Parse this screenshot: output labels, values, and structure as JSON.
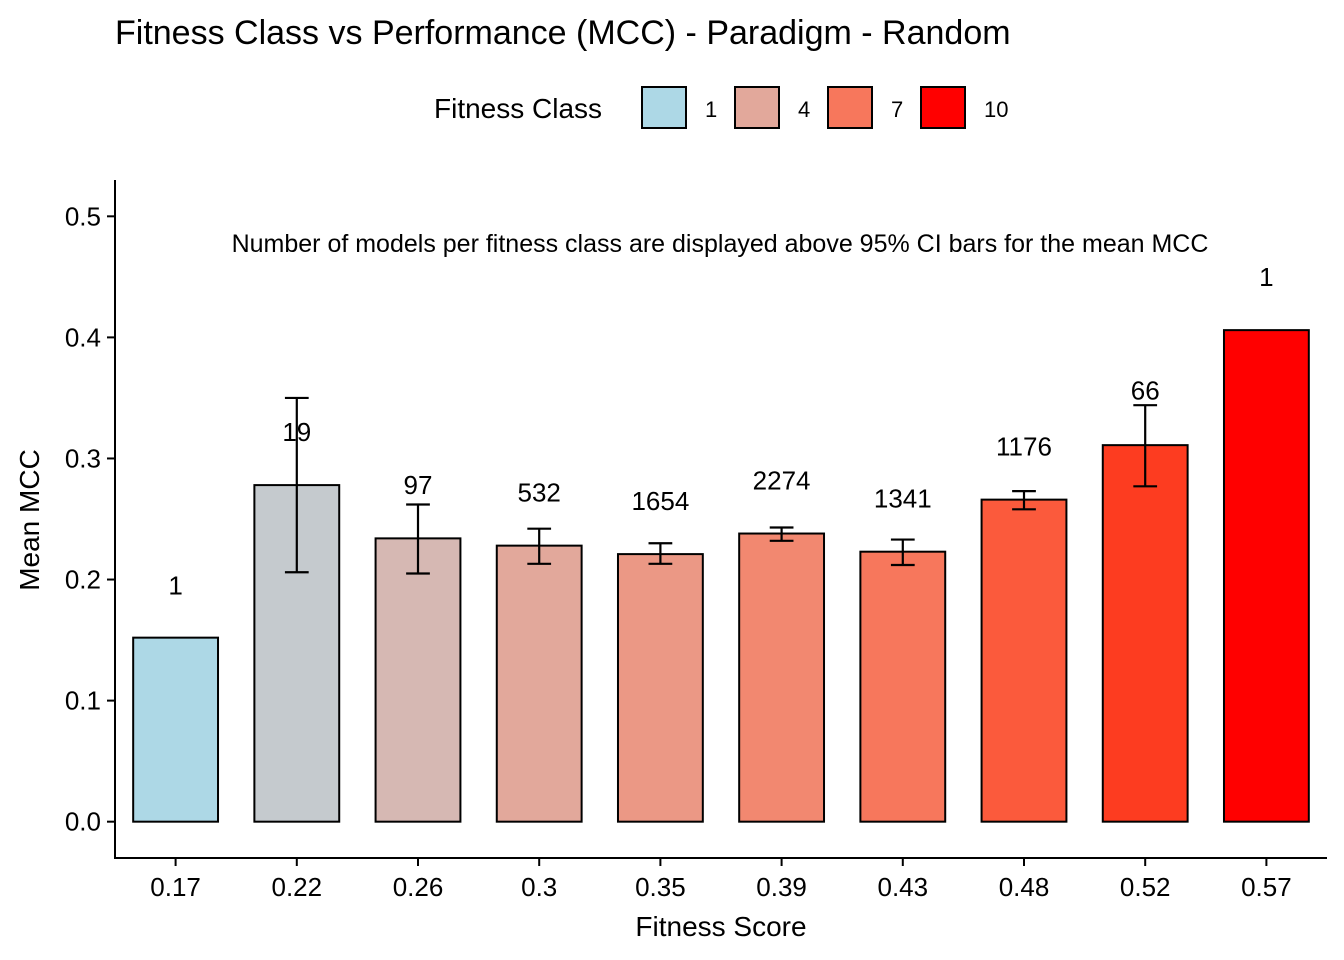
{
  "chart_data": {
    "type": "bar",
    "title": "Fitness Class vs Performance (MCC) - Paradigm - Random",
    "xlabel": "Fitness Score",
    "ylabel": "Mean MCC",
    "annotation": "Number of models per fitness class are displayed above 95% CI bars for the mean MCC",
    "categories": [
      "0.17",
      "0.22",
      "0.26",
      "0.3",
      "0.35",
      "0.39",
      "0.43",
      "0.48",
      "0.52",
      "0.57"
    ],
    "values": [
      0.152,
      0.278,
      0.234,
      0.228,
      0.221,
      0.238,
      0.223,
      0.266,
      0.311,
      0.406
    ],
    "ci_low": [
      null,
      0.206,
      0.205,
      0.213,
      0.213,
      0.232,
      0.212,
      0.258,
      0.277,
      null
    ],
    "ci_high": [
      null,
      0.35,
      0.262,
      0.242,
      0.23,
      0.243,
      0.233,
      0.273,
      0.344,
      null
    ],
    "counts": [
      "1",
      "19",
      "97",
      "532",
      "1654",
      "2274",
      "1341",
      "1176",
      "66",
      "1"
    ],
    "count_y": [
      0.195,
      0.322,
      0.278,
      0.272,
      0.265,
      0.282,
      0.267,
      0.31,
      0.356,
      0.45
    ],
    "colors": [
      "#ADD8E6",
      "#C5CACE",
      "#D6B8B3",
      "#E2A89B",
      "#EB9885",
      "#F28870",
      "#F7775C",
      "#FB5A3C",
      "#FD3C20",
      "#FF0000"
    ],
    "ylim": [
      -0.03,
      0.53
    ],
    "yticks": [
      "0.0",
      "0.1",
      "0.2",
      "0.3",
      "0.4",
      "0.5"
    ],
    "ytick_values": [
      0,
      0.1,
      0.2,
      0.3,
      0.4,
      0.5
    ],
    "grid": false,
    "legend": {
      "title": "Fitness Class",
      "placement": "top",
      "entries": [
        {
          "label": "1",
          "color": "#ADD8E6"
        },
        {
          "label": "4",
          "color": "#E2A89B"
        },
        {
          "label": "7",
          "color": "#F7775C"
        },
        {
          "label": "10",
          "color": "#FF0000"
        }
      ]
    }
  }
}
